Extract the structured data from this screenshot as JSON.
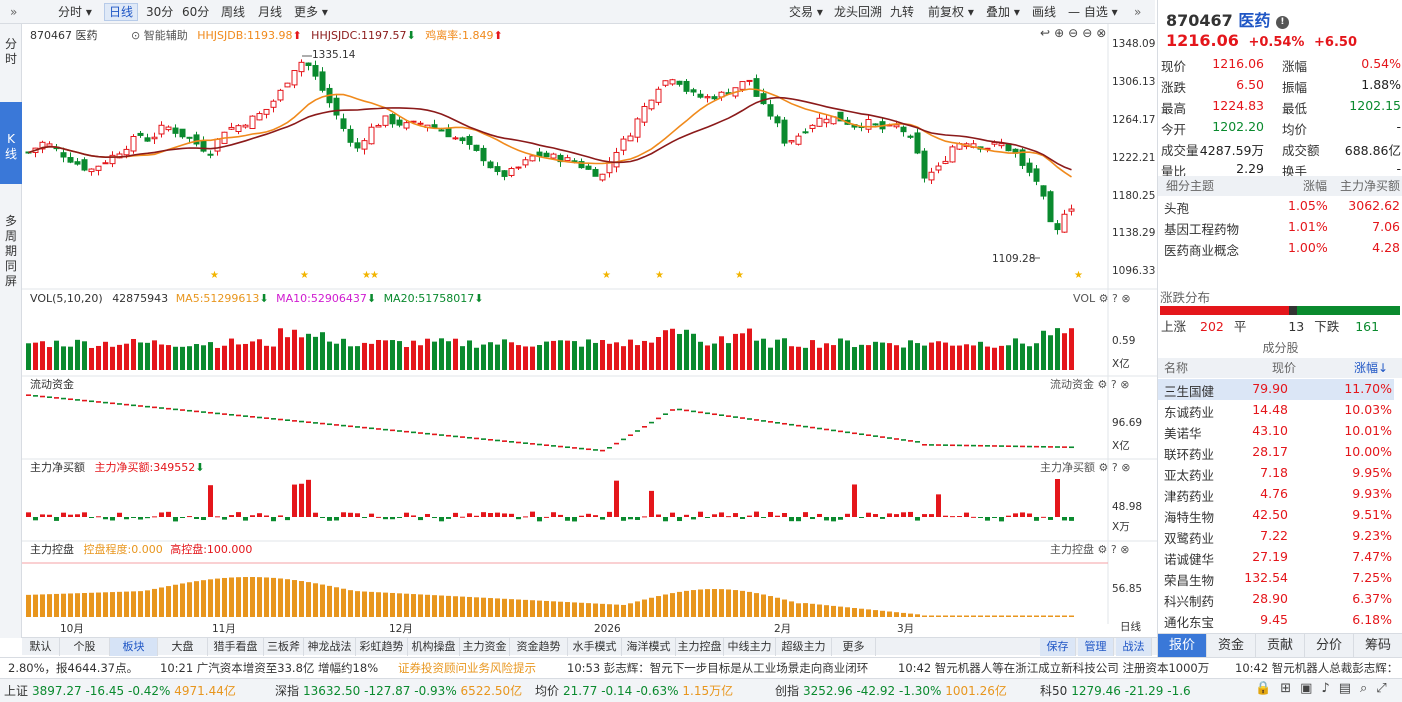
{
  "toolbar": {
    "periods": [
      "分时",
      "日线",
      "30分",
      "60分",
      "周线",
      "月线",
      "更多"
    ],
    "selected": "日线",
    "right_items": [
      "交易",
      "龙头回溯",
      "九转",
      "前复权",
      "叠加",
      "画线",
      "自选"
    ],
    "collapse_glyph": "»"
  },
  "left_tabs": [
    {
      "label": "分时",
      "selected": false
    },
    {
      "label": "K线",
      "selected": true
    },
    {
      "label": "多周期同屏",
      "selected": false
    }
  ],
  "main_header": {
    "code_name": "870467 医药",
    "assist": "智能辅助",
    "hhjsjdb": "HHJSJDB:1193.98",
    "hhjsjdc": "HHJSJDC:1197.57",
    "rate": "鸡离率:1.849"
  },
  "price_axis": [
    "1348.09",
    "1306.13",
    "1264.17",
    "1222.21",
    "1180.25",
    "1138.29",
    "1096.33"
  ],
  "annotations": {
    "high": "1335.14",
    "low": "1109.28"
  },
  "vol_header": {
    "title": "VOL(5,10,20)",
    "value": "42875943",
    "ma5": "MA5:51299613",
    "ma10": "MA10:52906437",
    "ma20": "MA20:51758017",
    "right": "VOL"
  },
  "vol_axis": {
    "value": "0.59",
    "unit": "X亿"
  },
  "flow_header": {
    "title": "流动资金",
    "right": "流动资金"
  },
  "flow_axis": {
    "value": "96.69",
    "unit": "X亿"
  },
  "net_header": {
    "title": "主力净买额",
    "value": "主力净买额:349552",
    "right": "主力净买额"
  },
  "net_axis": {
    "value": "48.98",
    "unit": "X万"
  },
  "ctrl_header": {
    "title": "主力控盘",
    "degree": "控盘程度:0.000",
    "high": "高控盘:100.000",
    "right": "主力控盘"
  },
  "ctrl_axis": {
    "value": "56.85",
    "unit": "日线"
  },
  "date_axis": [
    "10月",
    "11月",
    "12月",
    "2026",
    "2月",
    "3月"
  ],
  "bottom_tabs": [
    "默认",
    "个股",
    "板块",
    "大盘",
    "猎手看盘",
    "三板斧",
    "神龙战法",
    "彩虹趋势",
    "机构操盘",
    "主力资金",
    "资金趋势",
    "水手模式",
    "海洋模式",
    "主力控盘",
    "中线主力",
    "超级主力",
    "更多"
  ],
  "bottom_selected": "板块",
  "bottom_right": [
    "保存",
    "管理",
    "战法"
  ],
  "chart_data": {
    "type": "candlestick",
    "x": [
      "10月",
      "11月",
      "12月",
      "2026",
      "2月",
      "3月"
    ],
    "ylim": [
      1096.33,
      1348.09
    ],
    "high": 1335.14,
    "low": 1109.28,
    "last_close": 1216.06
  },
  "quote": {
    "code": "870467",
    "name": "医药",
    "price": "1216.06",
    "pct": "+0.54%",
    "chg": "+6.50",
    "rows": [
      {
        "l": "现价",
        "v": "1216.06",
        "lc": "red",
        "r": "涨幅",
        "rv": "0.54%",
        "rc": "red"
      },
      {
        "l": "涨跌",
        "v": "6.50",
        "lc": "red",
        "r": "振幅",
        "rv": "1.88%",
        "rc": "dark"
      },
      {
        "l": "最高",
        "v": "1224.83",
        "lc": "red",
        "r": "最低",
        "rv": "1202.15",
        "rc": "green"
      },
      {
        "l": "今开",
        "v": "1202.20",
        "lc": "green",
        "r": "均价",
        "rv": "-",
        "rc": "dark"
      },
      {
        "l": "成交量",
        "v": "4287.59万",
        "lc": "dark",
        "r": "成交额",
        "rv": "688.86亿",
        "rc": "dark"
      },
      {
        "l": "量比",
        "v": "2.29",
        "lc": "dark",
        "r": "换手",
        "rv": "-",
        "rc": "dark"
      }
    ]
  },
  "themes": {
    "headers": [
      "细分主题",
      "涨幅",
      "主力净买额"
    ],
    "rows": [
      {
        "name": "头孢",
        "pct": "1.05%",
        "net": "3062.62"
      },
      {
        "name": "基因工程药物",
        "pct": "1.01%",
        "net": "7.06"
      },
      {
        "name": "医药商业概念",
        "pct": "1.00%",
        "net": "4.28"
      }
    ]
  },
  "dist": {
    "title": "涨跌分布",
    "up_label": "上涨",
    "up": "202",
    "flat_label": "平",
    "flat": "13",
    "down_label": "下跌",
    "down": "161",
    "up_frac": 0.537,
    "flat_frac": 0.035
  },
  "constituents": {
    "title": "成分股",
    "headers": [
      "名称",
      "现价",
      "涨幅"
    ],
    "rows": [
      {
        "name": "三生国健",
        "price": "79.90",
        "pct": "11.70%"
      },
      {
        "name": "东诚药业",
        "price": "14.48",
        "pct": "10.03%"
      },
      {
        "name": "美诺华",
        "price": "43.10",
        "pct": "10.01%"
      },
      {
        "name": "联环药业",
        "price": "28.17",
        "pct": "10.00%"
      },
      {
        "name": "亚太药业",
        "price": "7.18",
        "pct": "9.95%"
      },
      {
        "name": "津药药业",
        "price": "4.76",
        "pct": "9.93%"
      },
      {
        "name": "海特生物",
        "price": "42.50",
        "pct": "9.51%"
      },
      {
        "name": "双鹭药业",
        "price": "7.22",
        "pct": "9.23%"
      },
      {
        "name": "诺诚健华",
        "price": "27.19",
        "pct": "7.47%"
      },
      {
        "name": "荣昌生物",
        "price": "132.54",
        "pct": "7.25%"
      },
      {
        "name": "科兴制药",
        "price": "28.90",
        "pct": "6.37%"
      },
      {
        "name": "通化东宝",
        "price": "9.45",
        "pct": "6.18%"
      }
    ]
  },
  "right_tabs": [
    "报价",
    "资金",
    "贡献",
    "分价",
    "筹码"
  ],
  "news": [
    "2.80%，报4644.37点。",
    "10:21 广汽资本增资至33.8亿 增幅约18%",
    "证券投资顾问业务风险提示",
    "10:53 彭志辉：智元下一步目标是从工业场景走向商业闭环",
    "10:42 智元机器人等在浙江成立新科技公司 注册资本1000万",
    "10:42 智元机器人总裁彭志辉："
  ],
  "tickers": [
    {
      "name": "上证",
      "val": "3897.27",
      "chg": "-16.45",
      "pct": "-0.42%",
      "amt": "4971.44亿"
    },
    {
      "name": "深指",
      "val": "13632.50",
      "chg": "-127.87",
      "pct": "-0.93%",
      "amt": "6522.50亿"
    },
    {
      "name": "均价",
      "val": "21.77",
      "chg": "-0.14",
      "pct": "-0.63%",
      "amt": "1.15万亿"
    },
    {
      "name": "创指",
      "val": "3252.96",
      "chg": "-42.92",
      "pct": "-1.30%",
      "amt": "1001.26亿"
    },
    {
      "name": "科50",
      "val": "1279.46",
      "chg": "-21.29",
      "pct": "-1.6",
      "amt": ""
    }
  ],
  "colors": {
    "up": "#e4161b",
    "down": "#0a8a2e",
    "ma_orange": "#f08a1c",
    "ma_darkred": "#8b1a1a",
    "ctrl": "#e8961e",
    "accent": "#1f56c5"
  }
}
